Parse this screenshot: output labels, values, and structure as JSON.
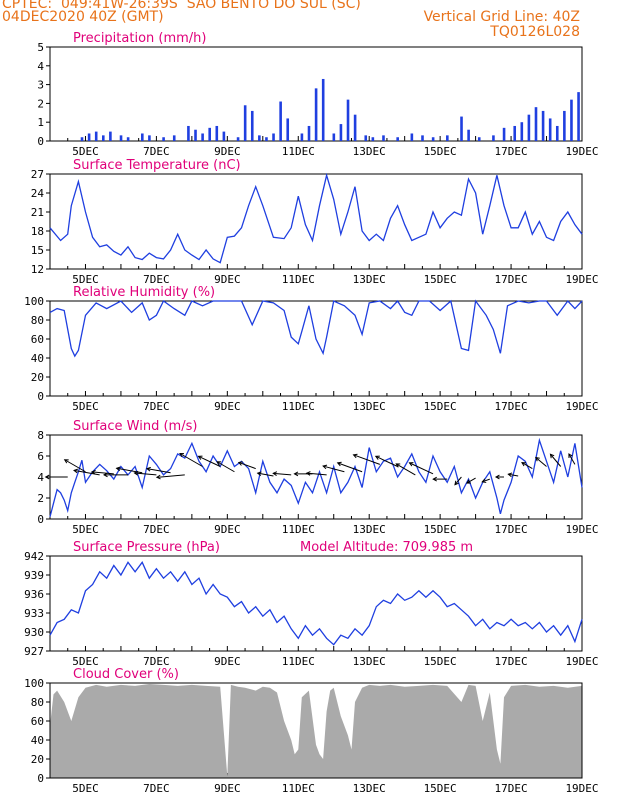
{
  "header": {
    "line1_left": "CPTEC:  049:41W-26:39S  SAO BENTO DO SUL (SC)",
    "line2_left": "04DEC2020 40Z (GMT)",
    "line2_right": "Vertical Grid Line: 40Z",
    "line3_right": "TQ0126L028"
  },
  "x_labels": [
    "5DEC",
    "7DEC",
    "9DEC",
    "11DEC",
    "13DEC",
    "15DEC",
    "17DEC",
    "19DEC"
  ],
  "model_altitude": "Model Altitude: 709.985 m",
  "colors": {
    "header": "#e8731b",
    "title": "#e0007a",
    "line": "#1f3fe0",
    "bar": "#1f3fe0",
    "cloud": "#aaaaaa",
    "arrow": "#000000"
  },
  "chart_data": [
    {
      "type": "bar",
      "title": "Precipitation (mm/h)",
      "ylim": [
        0,
        5
      ],
      "yticks": [
        0,
        1,
        2,
        3,
        4,
        5
      ],
      "x": [
        4.9,
        5.1,
        5.3,
        5.5,
        5.7,
        6.0,
        6.2,
        6.6,
        6.8,
        7.2,
        7.5,
        7.9,
        8.1,
        8.3,
        8.5,
        8.7,
        8.9,
        9.3,
        9.5,
        9.7,
        9.9,
        10.1,
        10.3,
        10.5,
        10.7,
        11.1,
        11.3,
        11.5,
        11.7,
        12.0,
        12.2,
        12.4,
        12.6,
        12.9,
        13.1,
        13.4,
        13.8,
        14.2,
        14.5,
        14.8,
        15.2,
        15.6,
        15.8,
        16.1,
        16.5,
        16.8,
        17.1,
        17.3,
        17.5,
        17.7,
        17.9,
        18.1,
        18.3,
        18.5,
        18.7,
        18.9
      ],
      "values": [
        0.2,
        0.4,
        0.5,
        0.3,
        0.5,
        0.3,
        0.2,
        0.4,
        0.3,
        0.2,
        0.3,
        0.8,
        0.6,
        0.4,
        0.7,
        0.8,
        0.5,
        0.2,
        1.9,
        1.6,
        0.3,
        0.2,
        0.4,
        2.1,
        1.2,
        0.4,
        0.8,
        2.8,
        3.3,
        0.4,
        0.9,
        2.2,
        1.4,
        0.3,
        0.2,
        0.3,
        0.2,
        0.4,
        0.3,
        0.2,
        0.3,
        1.3,
        0.6,
        0.2,
        0.3,
        0.7,
        0.8,
        1.0,
        1.4,
        1.8,
        1.6,
        1.2,
        0.8,
        1.6,
        2.2,
        2.6
      ]
    },
    {
      "type": "line",
      "title": "Surface Temperature (nC)",
      "ylim": [
        12,
        27
      ],
      "yticks": [
        12,
        15,
        18,
        21,
        24,
        27
      ],
      "x": [
        4.0,
        4.3,
        4.5,
        4.6,
        4.8,
        5.0,
        5.2,
        5.4,
        5.6,
        5.8,
        6.0,
        6.2,
        6.4,
        6.6,
        6.8,
        7.0,
        7.2,
        7.4,
        7.6,
        7.8,
        8.0,
        8.2,
        8.4,
        8.6,
        8.8,
        9.0,
        9.2,
        9.4,
        9.6,
        9.8,
        10.0,
        10.3,
        10.6,
        10.8,
        11.0,
        11.2,
        11.4,
        11.6,
        11.8,
        12.0,
        12.2,
        12.4,
        12.6,
        12.8,
        13.0,
        13.2,
        13.4,
        13.6,
        13.8,
        14.0,
        14.2,
        14.4,
        14.6,
        14.8,
        15.0,
        15.2,
        15.4,
        15.6,
        15.8,
        16.0,
        16.2,
        16.4,
        16.6,
        16.8,
        17.0,
        17.2,
        17.4,
        17.6,
        17.8,
        18.0,
        18.2,
        18.4,
        18.6,
        18.8,
        19.0
      ],
      "values": [
        18.5,
        16.5,
        17.5,
        22,
        25.8,
        21,
        17,
        15.5,
        15.8,
        14.8,
        14.2,
        15.5,
        13.8,
        13.5,
        14.5,
        13.8,
        13.6,
        15,
        17.5,
        15,
        14.2,
        13.5,
        15,
        13.6,
        13.0,
        17,
        17.2,
        18.5,
        22,
        25,
        22,
        17,
        16.8,
        18.5,
        23.5,
        19,
        16.5,
        22,
        26.8,
        23,
        17.5,
        21,
        25,
        18,
        16.5,
        17.5,
        16.5,
        20,
        22,
        19,
        16.5,
        17,
        17.5,
        21,
        18.5,
        20,
        21,
        20.5,
        26.2,
        24,
        17.5,
        22,
        26.8,
        22,
        18.5,
        18.5,
        21,
        17.5,
        19.5,
        17,
        16.5,
        19.5,
        21,
        19,
        17.5
      ]
    },
    {
      "type": "line",
      "title": "Relative Humidity (%)",
      "ylim": [
        0,
        100
      ],
      "yticks": [
        0,
        20,
        40,
        60,
        80,
        100
      ],
      "x": [
        4.0,
        4.2,
        4.4,
        4.6,
        4.7,
        4.8,
        5.0,
        5.3,
        5.6,
        6.0,
        6.3,
        6.6,
        6.8,
        7.0,
        7.2,
        7.5,
        7.8,
        8.0,
        8.3,
        8.6,
        9.0,
        9.4,
        9.7,
        10.0,
        10.3,
        10.6,
        10.8,
        11.0,
        11.1,
        11.3,
        11.5,
        11.7,
        11.8,
        12.0,
        12.3,
        12.6,
        12.8,
        13.0,
        13.3,
        13.6,
        13.8,
        14.0,
        14.2,
        14.4,
        14.7,
        15.0,
        15.3,
        15.6,
        15.8,
        16.0,
        16.3,
        16.5,
        16.7,
        16.9,
        17.2,
        17.5,
        17.8,
        18.0,
        18.3,
        18.6,
        18.8,
        19.0
      ],
      "values": [
        88,
        92,
        90,
        50,
        42,
        48,
        85,
        98,
        92,
        100,
        88,
        98,
        80,
        85,
        100,
        92,
        85,
        100,
        95,
        100,
        100,
        100,
        75,
        100,
        98,
        90,
        62,
        55,
        68,
        95,
        60,
        45,
        62,
        100,
        95,
        85,
        65,
        98,
        100,
        92,
        100,
        88,
        85,
        100,
        100,
        90,
        100,
        50,
        48,
        100,
        85,
        70,
        45,
        95,
        100,
        98,
        100,
        100,
        85,
        100,
        92,
        100
      ]
    },
    {
      "type": "line",
      "title": "Surface Wind (m/s)",
      "ylim": [
        0,
        8
      ],
      "yticks": [
        0,
        2,
        4,
        6,
        8
      ],
      "x": [
        4.0,
        4.1,
        4.2,
        4.3,
        4.4,
        4.5,
        4.6,
        4.7,
        4.8,
        4.9,
        5.0,
        5.2,
        5.4,
        5.6,
        5.8,
        6.0,
        6.2,
        6.4,
        6.6,
        6.8,
        7.0,
        7.2,
        7.4,
        7.6,
        7.8,
        8.0,
        8.2,
        8.4,
        8.6,
        8.8,
        9.0,
        9.2,
        9.4,
        9.6,
        9.8,
        10.0,
        10.2,
        10.4,
        10.6,
        10.8,
        11.0,
        11.2,
        11.4,
        11.6,
        11.8,
        12.0,
        12.2,
        12.4,
        12.6,
        12.8,
        13.0,
        13.2,
        13.4,
        13.6,
        13.8,
        14.0,
        14.2,
        14.4,
        14.6,
        14.8,
        15.0,
        15.2,
        15.4,
        15.6,
        15.8,
        16.0,
        16.2,
        16.4,
        16.6,
        16.7,
        16.8,
        17.0,
        17.2,
        17.4,
        17.6,
        17.8,
        18.0,
        18.2,
        18.4,
        18.6,
        18.8,
        19.0
      ],
      "values": [
        0.2,
        1.5,
        2.8,
        2.5,
        1.8,
        0.8,
        2.5,
        3.5,
        4.5,
        5.6,
        3.5,
        4.5,
        5.2,
        4.6,
        3.8,
        5.0,
        4.2,
        5.0,
        3.0,
        6.0,
        5.2,
        4.2,
        4.8,
        6.2,
        5.8,
        7.2,
        5.5,
        4.5,
        6.0,
        5.0,
        6.5,
        5.0,
        5.5,
        4.8,
        2.5,
        5.5,
        3.5,
        2.5,
        3.8,
        3.2,
        1.5,
        3.5,
        2.5,
        4.5,
        2.5,
        5.0,
        2.5,
        3.5,
        5.0,
        3.0,
        6.8,
        4.5,
        5.5,
        5.8,
        4.0,
        5.0,
        6.2,
        4.5,
        3.5,
        6.0,
        4.5,
        3.5,
        5.0,
        2.5,
        3.8,
        2.0,
        3.5,
        4.5,
        2.0,
        0.5,
        1.8,
        3.5,
        6.0,
        5.5,
        4.0,
        7.5,
        5.5,
        3.5,
        6.5,
        4.0,
        7.2,
        3.0
      ]
    },
    {
      "type": "line",
      "title": "Surface Pressure (hPa)",
      "ylim": [
        927,
        942
      ],
      "yticks": [
        927,
        930,
        933,
        936,
        939,
        942
      ],
      "x": [
        4.0,
        4.2,
        4.4,
        4.6,
        4.8,
        5.0,
        5.2,
        5.4,
        5.6,
        5.8,
        6.0,
        6.2,
        6.4,
        6.6,
        6.8,
        7.0,
        7.2,
        7.4,
        7.6,
        7.8,
        8.0,
        8.2,
        8.4,
        8.6,
        8.8,
        9.0,
        9.2,
        9.4,
        9.6,
        9.8,
        10.0,
        10.2,
        10.4,
        10.6,
        10.8,
        11.0,
        11.2,
        11.4,
        11.6,
        11.8,
        12.0,
        12.2,
        12.4,
        12.6,
        12.8,
        13.0,
        13.2,
        13.4,
        13.6,
        13.8,
        14.0,
        14.2,
        14.4,
        14.6,
        14.8,
        15.0,
        15.2,
        15.4,
        15.6,
        15.8,
        16.0,
        16.2,
        16.4,
        16.6,
        16.8,
        17.0,
        17.2,
        17.4,
        17.6,
        17.8,
        18.0,
        18.2,
        18.4,
        18.6,
        18.8,
        19.0
      ],
      "values": [
        929.5,
        931.5,
        932,
        933.5,
        933,
        936.5,
        937.5,
        939.5,
        938.5,
        940.5,
        939,
        941,
        939.5,
        941,
        938.5,
        940,
        938.5,
        939.5,
        938,
        939.5,
        937.5,
        938.5,
        936,
        937.5,
        936,
        935.5,
        934,
        934.8,
        933,
        934,
        932.5,
        933.5,
        931.5,
        932.5,
        930.5,
        929,
        931,
        929.5,
        930.5,
        929,
        928,
        929.5,
        929,
        930.5,
        929.5,
        931,
        934,
        935,
        934.5,
        936,
        935,
        935.5,
        936.5,
        935.5,
        936.5,
        935.5,
        934,
        934.5,
        933.5,
        932.5,
        931,
        932,
        930.5,
        931.5,
        931,
        932,
        931,
        931.5,
        930.5,
        931.5,
        930,
        931,
        929.5,
        931,
        928.5,
        932
      ]
    },
    {
      "type": "area",
      "title": "Cloud Cover (%)",
      "ylim": [
        0,
        100
      ],
      "yticks": [
        0,
        20,
        40,
        60,
        80,
        100
      ],
      "x": [
        4.0,
        4.1,
        4.2,
        4.4,
        4.6,
        4.8,
        5.0,
        5.3,
        5.6,
        6.0,
        6.4,
        6.8,
        7.2,
        7.6,
        8.0,
        8.4,
        8.8,
        9.0,
        9.1,
        9.3,
        9.5,
        9.8,
        10.0,
        10.2,
        10.4,
        10.6,
        10.8,
        10.9,
        11.0,
        11.1,
        11.3,
        11.5,
        11.6,
        11.7,
        11.8,
        11.9,
        12.0,
        12.2,
        12.4,
        12.5,
        12.6,
        12.8,
        13.0,
        13.3,
        13.6,
        14.0,
        14.4,
        14.8,
        15.2,
        15.6,
        15.8,
        16.0,
        16.2,
        16.4,
        16.6,
        16.7,
        16.8,
        17.0,
        17.4,
        17.8,
        18.2,
        18.6,
        19.0
      ],
      "values": [
        55,
        88,
        92,
        80,
        60,
        85,
        95,
        98,
        96,
        98,
        97,
        99,
        98,
        97,
        98,
        97,
        96,
        2,
        98,
        96,
        95,
        92,
        96,
        95,
        90,
        60,
        40,
        25,
        30,
        85,
        92,
        35,
        25,
        20,
        70,
        92,
        95,
        65,
        45,
        30,
        80,
        95,
        98,
        97,
        98,
        96,
        97,
        98,
        97,
        80,
        98,
        97,
        60,
        90,
        30,
        15,
        85,
        97,
        98,
        96,
        97,
        95,
        97
      ]
    },
    {
      "type": "vector",
      "title": "Surface Wind direction",
      "x": [
        4.5,
        5.0,
        5.4,
        5.8,
        6.2,
        6.6,
        7.0,
        7.4,
        7.8,
        8.3,
        8.8,
        9.2,
        9.8,
        10.3,
        10.8,
        11.4,
        11.8,
        12.3,
        12.8,
        13.3,
        13.8,
        14.3,
        14.8,
        15.2,
        15.6,
        16.0,
        16.4,
        16.8,
        17.2,
        17.6,
        18.0,
        18.4,
        18.8
      ],
      "y": [
        4.0,
        4.5,
        4.2,
        4.3,
        4.2,
        4.4,
        4.2,
        4.4,
        4.2,
        5.0,
        5.0,
        4.5,
        4.8,
        4.1,
        4.2,
        4.3,
        4.2,
        4.5,
        4.5,
        5.2,
        5.0,
        4.2,
        4.3,
        3.8,
        4.0,
        3.9,
        3.8,
        4.0,
        4.1,
        4.8,
        5.0,
        5.0,
        5.2
      ],
      "dir_deg": [
        180,
        150,
        170,
        175,
        180,
        170,
        175,
        170,
        185,
        150,
        155,
        150,
        160,
        170,
        175,
        180,
        175,
        165,
        160,
        160,
        155,
        150,
        155,
        180,
        230,
        210,
        200,
        180,
        170,
        150,
        140,
        130,
        120
      ],
      "len": [
        22,
        24,
        26,
        22,
        24,
        26,
        22,
        24,
        28,
        26,
        24,
        20,
        18,
        16,
        18,
        18,
        20,
        22,
        26,
        28,
        24,
        22,
        26,
        14,
        10,
        10,
        8,
        8,
        10,
        12,
        14,
        16,
        12
      ]
    }
  ]
}
